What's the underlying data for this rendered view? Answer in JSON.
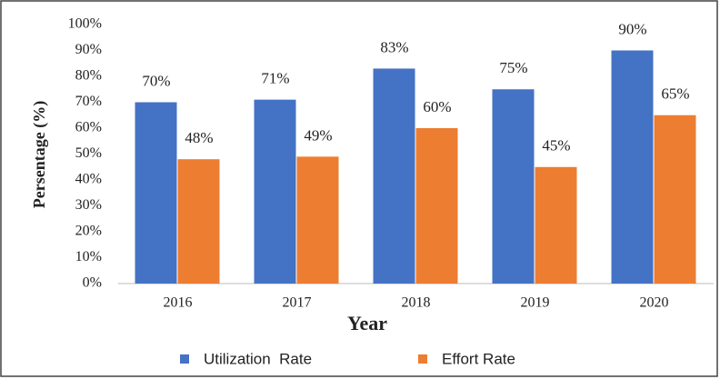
{
  "chart_data": {
    "type": "bar",
    "categories": [
      "2016",
      "2017",
      "2018",
      "2019",
      "2020"
    ],
    "series": [
      {
        "name": "Utilization  Rate",
        "color": "#4472c4",
        "values": [
          70,
          71,
          83,
          75,
          90
        ],
        "value_labels": [
          "70%",
          "71%",
          "83%",
          "75%",
          "90%"
        ]
      },
      {
        "name": "Effort Rate",
        "color": "#ed7d31",
        "values": [
          48,
          49,
          60,
          45,
          65
        ],
        "value_labels": [
          "48%",
          "49%",
          "60%",
          "45%",
          "65%"
        ]
      }
    ],
    "xlabel": "Year",
    "ylabel": "Persentage (%)",
    "ylim": [
      0,
      100
    ],
    "yticks": [
      {
        "value": 0,
        "label": "0%"
      },
      {
        "value": 10,
        "label": "10%"
      },
      {
        "value": 20,
        "label": "20%"
      },
      {
        "value": 30,
        "label": "30%"
      },
      {
        "value": 40,
        "label": "40%"
      },
      {
        "value": 50,
        "label": "50%"
      },
      {
        "value": 60,
        "label": "60%"
      },
      {
        "value": 70,
        "label": "70%"
      },
      {
        "value": 80,
        "label": "80%"
      },
      {
        "value": 90,
        "label": "90%"
      },
      {
        "value": 100,
        "label": "100%"
      }
    ],
    "grid": false
  }
}
